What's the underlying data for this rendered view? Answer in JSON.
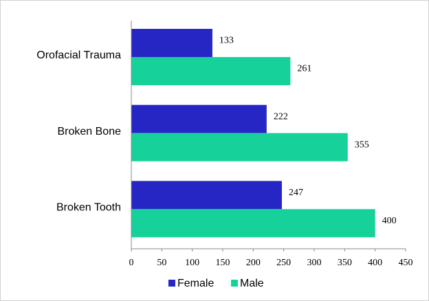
{
  "chart_data": {
    "type": "barh",
    "categories": [
      "Orofacial Trauma",
      "Broken Bone",
      "Broken Tooth"
    ],
    "series": [
      {
        "name": "Female",
        "color": "#2626c4",
        "values": [
          133,
          222,
          247
        ]
      },
      {
        "name": "Male",
        "color": "#17d19a",
        "values": [
          261,
          355,
          400
        ]
      }
    ],
    "xlim": [
      0,
      450
    ],
    "xticks": [
      0,
      50,
      100,
      150,
      200,
      250,
      300,
      350,
      400,
      450
    ],
    "grid": false,
    "legend": "bottom"
  }
}
